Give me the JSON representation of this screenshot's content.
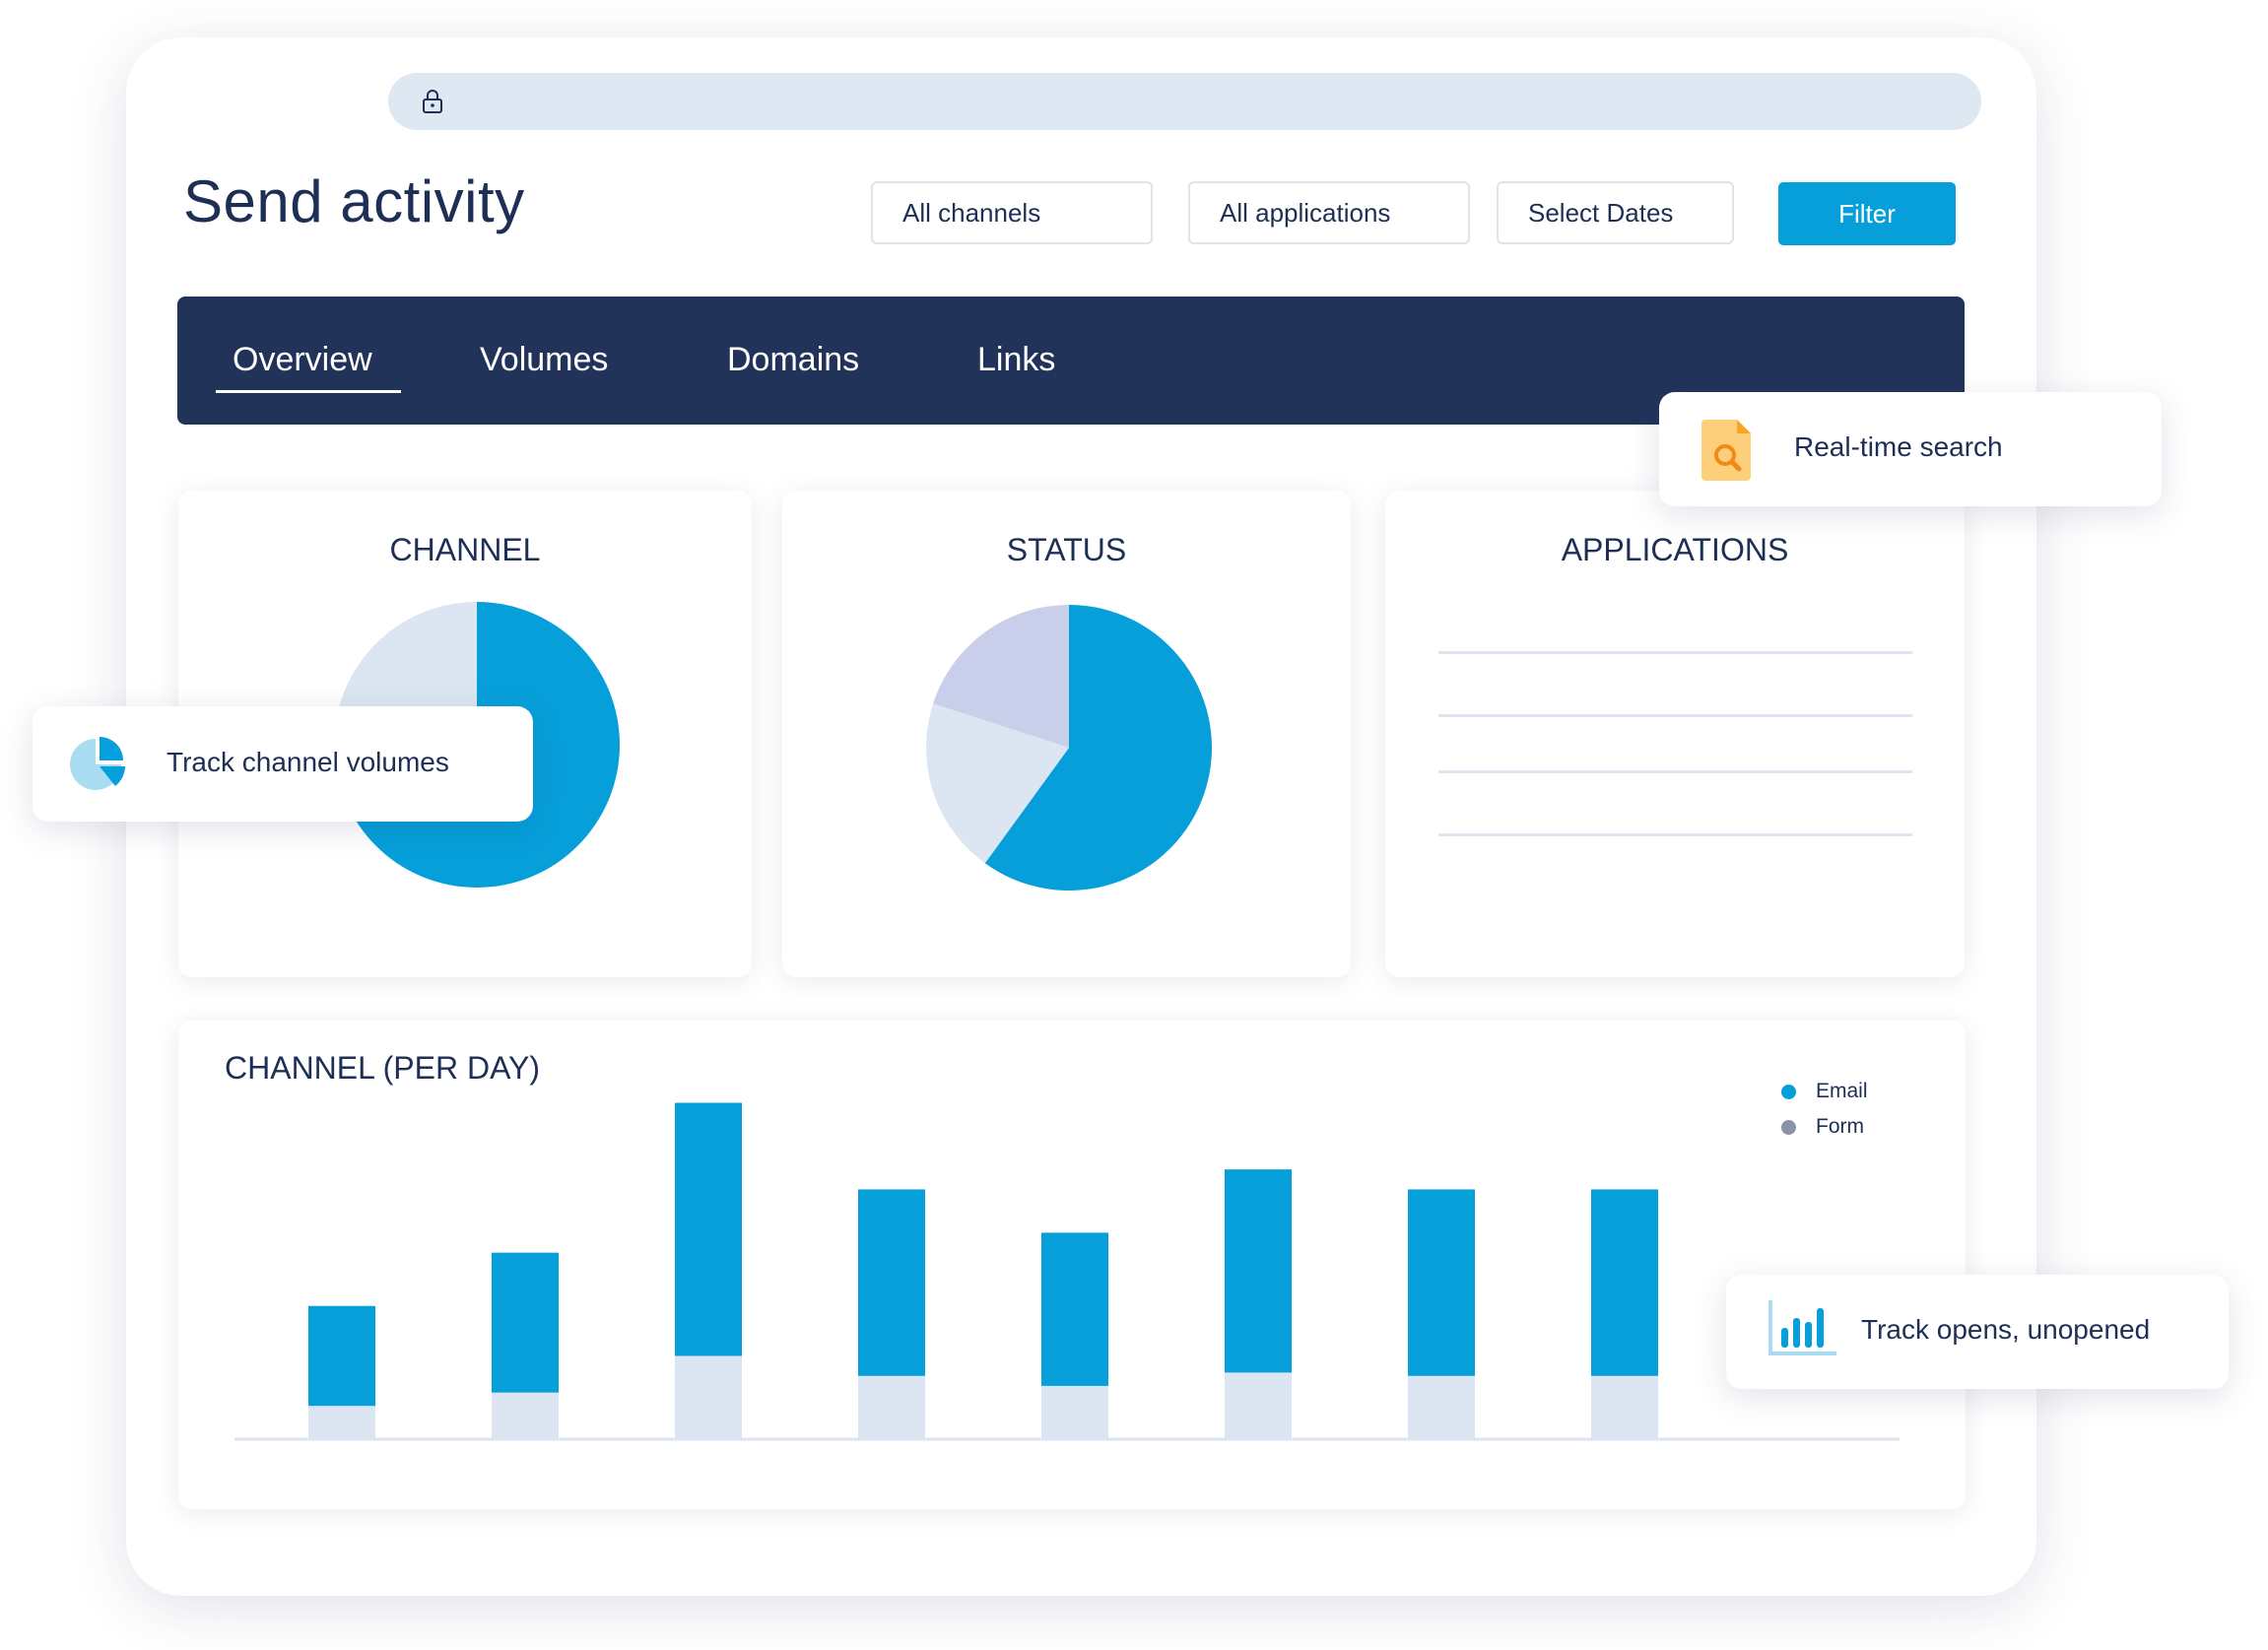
{
  "window": {
    "dot_colors": [
      "#1e2f55",
      "#1c6bb0",
      "#0b9be0"
    ]
  },
  "page_title": "Send activity",
  "filters": {
    "channels": "All channels",
    "applications": "All applications",
    "dates": "Select Dates",
    "filter_button": "Filter"
  },
  "tabs": [
    "Overview",
    "Volumes",
    "Domains",
    "Links"
  ],
  "active_tab": "Overview",
  "cards": {
    "channel": {
      "title": "CHANNEL"
    },
    "status": {
      "title": "STATUS"
    },
    "applications": {
      "title": "APPLICATIONS"
    }
  },
  "callouts": {
    "search": {
      "text": "Real-time search",
      "icon": "search-document-icon"
    },
    "channel": {
      "text": "Track channel volumes",
      "icon": "pie-chart-icon"
    },
    "opens": {
      "text": "Track opens, unopened",
      "icon": "bar-chart-icon"
    }
  },
  "colors": {
    "primary": "#069fda",
    "navy": "#22335a",
    "light": "#dce6f2",
    "lavender": "#c9cfea",
    "form_legend": "#8a93a8"
  },
  "chart_data": [
    {
      "type": "pie",
      "title": "CHANNEL",
      "slices": [
        {
          "value": 75,
          "color": "#069fda"
        },
        {
          "value": 25,
          "color": "#dce6f2"
        }
      ]
    },
    {
      "type": "pie",
      "title": "STATUS",
      "slices": [
        {
          "value": 60,
          "color": "#069fda"
        },
        {
          "value": 20,
          "color": "#dce6f2"
        },
        {
          "value": 20,
          "color": "#c9cfea"
        }
      ]
    },
    {
      "type": "bar",
      "stacked": true,
      "title": "CHANNEL (PER DAY)",
      "categories": [
        "",
        "",
        "",
        "",
        "",
        "",
        "",
        ""
      ],
      "series": [
        {
          "name": "Email",
          "color": "#069fda",
          "values": [
            30,
            42,
            76,
            56,
            46,
            61,
            56,
            56
          ]
        },
        {
          "name": "Form",
          "color": "#dce6f2",
          "values": [
            10,
            14,
            25,
            19,
            16,
            20,
            19,
            19
          ]
        }
      ],
      "ylim": [
        0,
        105
      ],
      "legend": "top-right",
      "grid": false
    }
  ]
}
